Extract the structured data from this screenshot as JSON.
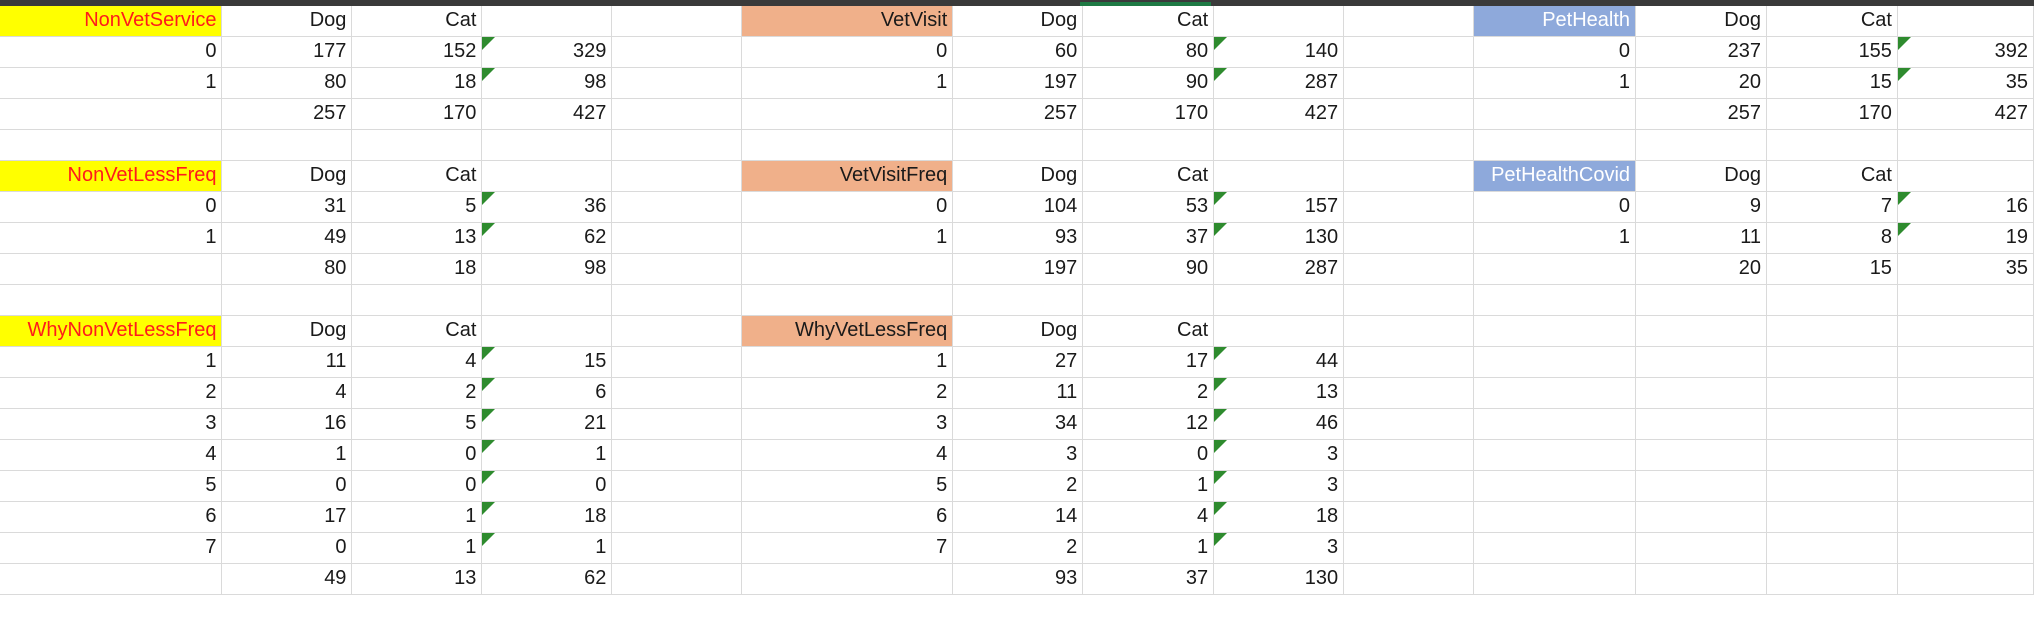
{
  "rows": [
    [
      "NonVetService",
      "Dog",
      "Cat",
      "",
      "",
      "VetVisit",
      "Dog",
      "Cat",
      "",
      "",
      "PetHealth",
      "Dog",
      "Cat",
      ""
    ],
    [
      "0",
      "177",
      "152",
      "329",
      "",
      "0",
      "60",
      "80",
      "140",
      "",
      "0",
      "237",
      "155",
      "392"
    ],
    [
      "1",
      "80",
      "18",
      "98",
      "",
      "1",
      "197",
      "90",
      "287",
      "",
      "1",
      "20",
      "15",
      "35"
    ],
    [
      "",
      "257",
      "170",
      "427",
      "",
      "",
      "257",
      "170",
      "427",
      "",
      "",
      "257",
      "170",
      "427"
    ],
    [
      "",
      "",
      "",
      "",
      "",
      "",
      "",
      "",
      "",
      "",
      "",
      "",
      "",
      ""
    ],
    [
      "NonVetLessFreq",
      "Dog",
      "Cat",
      "",
      "",
      "VetVisitFreq",
      "Dog",
      "Cat",
      "",
      "",
      "PetHealthCovid",
      "Dog",
      "Cat",
      ""
    ],
    [
      "0",
      "31",
      "5",
      "36",
      "",
      "0",
      "104",
      "53",
      "157",
      "",
      "0",
      "9",
      "7",
      "16"
    ],
    [
      "1",
      "49",
      "13",
      "62",
      "",
      "1",
      "93",
      "37",
      "130",
      "",
      "1",
      "11",
      "8",
      "19"
    ],
    [
      "",
      "80",
      "18",
      "98",
      "",
      "",
      "197",
      "90",
      "287",
      "",
      "",
      "20",
      "15",
      "35"
    ],
    [
      "",
      "",
      "",
      "",
      "",
      "",
      "",
      "",
      "",
      "",
      "",
      "",
      "",
      ""
    ],
    [
      "WhyNonVetLessFreq",
      "Dog",
      "Cat",
      "",
      "",
      "WhyVetLessFreq",
      "Dog",
      "Cat",
      "",
      "",
      "",
      "",
      "",
      ""
    ],
    [
      "1",
      "11",
      "4",
      "15",
      "",
      "1",
      "27",
      "17",
      "44",
      "",
      "",
      "",
      "",
      ""
    ],
    [
      "2",
      "4",
      "2",
      "6",
      "",
      "2",
      "11",
      "2",
      "13",
      "",
      "",
      "",
      "",
      ""
    ],
    [
      "3",
      "16",
      "5",
      "21",
      "",
      "3",
      "34",
      "12",
      "46",
      "",
      "",
      "",
      "",
      ""
    ],
    [
      "4",
      "1",
      "0",
      "1",
      "",
      "4",
      "3",
      "0",
      "3",
      "",
      "",
      "",
      "",
      ""
    ],
    [
      "5",
      "0",
      "0",
      "0",
      "",
      "5",
      "2",
      "1",
      "3",
      "",
      "",
      "",
      "",
      ""
    ],
    [
      "6",
      "17",
      "1",
      "18",
      "",
      "6",
      "14",
      "4",
      "18",
      "",
      "",
      "",
      "",
      ""
    ],
    [
      "7",
      "0",
      "1",
      "1",
      "",
      "7",
      "2",
      "1",
      "3",
      "",
      "",
      "",
      "",
      ""
    ],
    [
      "",
      "49",
      "13",
      "62",
      "",
      "",
      "93",
      "37",
      "130",
      "",
      "",
      "",
      "",
      ""
    ]
  ],
  "header_cells": {
    "yellow": [
      "0-0",
      "5-0",
      "10-0"
    ],
    "orange": [
      "0-5",
      "5-5",
      "10-5"
    ],
    "blue": [
      "0-10",
      "5-10"
    ]
  },
  "comment_flag_cells": [
    "1-3",
    "2-3",
    "6-3",
    "7-3",
    "11-3",
    "12-3",
    "13-3",
    "14-3",
    "15-3",
    "16-3",
    "17-3",
    "1-8",
    "2-8",
    "6-8",
    "7-8",
    "11-8",
    "12-8",
    "13-8",
    "14-8",
    "15-8",
    "16-8",
    "17-8",
    "1-13",
    "2-13",
    "6-13",
    "7-13"
  ],
  "colors": {
    "header_yellow": "#ffff00",
    "header_yellow_text": "#ff1b1b",
    "header_orange": "#f0b08a",
    "header_blue": "#8ea9db",
    "comment_flag": "#2e8b2e",
    "gridline": "#dadada"
  }
}
